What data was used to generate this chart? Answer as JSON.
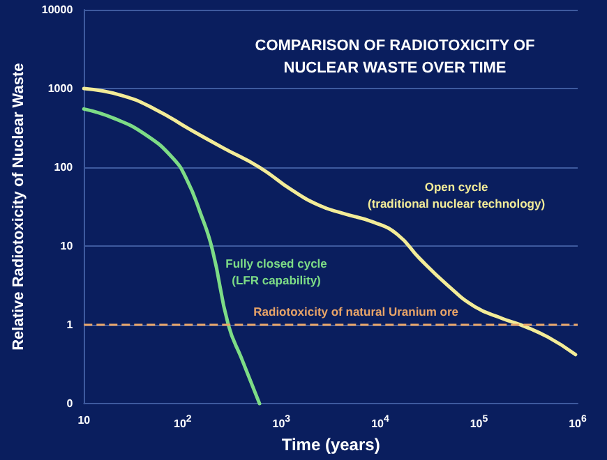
{
  "chart_data": {
    "type": "line",
    "title": "COMPARISON OF RADIOTOXICITY OF\nNUCLEAR WASTE OVER TIME",
    "xlabel": "Time (years)",
    "ylabel": "Relative Radiotoxicity of Nuclear Waste",
    "log": "xy",
    "grid": "y",
    "legend": false,
    "marker": "none",
    "line_style": "solid",
    "xlim": [
      10,
      1000000
    ],
    "ylim": [
      0.1,
      10000
    ],
    "xticks": [
      10,
      {
        "value": 100,
        "label": "10$^{2}$"
      },
      {
        "value": 1000,
        "label": "10$^{3}$"
      },
      {
        "value": 10000,
        "label": "10$^{4}$"
      },
      {
        "value": 100000,
        "label": "10$^{5}$"
      },
      {
        "value": 1000000,
        "label": "10$^{6}$"
      }
    ],
    "yticks": [
      {
        "value": 0.1,
        "label": "0"
      },
      1,
      10,
      100,
      1000,
      10000
    ],
    "series": [
      {
        "name": "Open cycle\n(traditional nuclear technology)",
        "color": "#f3ec98",
        "x": [
          10,
          24,
          52,
          120,
          260,
          600,
          1260,
          2400,
          4200,
          8700,
          15000,
          25000,
          48000,
          91000,
          174000,
          265000,
          500000,
          950000
        ],
        "values": [
          1000,
          820,
          550,
          300,
          175,
          100,
          52,
          33,
          26,
          20,
          14,
          7,
          3.2,
          1.7,
          1.2,
          1.0,
          0.7,
          0.42
        ]
      },
      {
        "name": "Fully closed cycle\n(LFR capability)",
        "color": "#7ddc86",
        "x": [
          10,
          20,
          42,
          80,
          110,
          150,
          200,
          290,
          400,
          600
        ],
        "values": [
          550,
          420,
          260,
          130,
          70,
          27,
          9,
          1,
          0.36,
          0.1
        ]
      }
    ],
    "ref_lines": [
      {
        "axis": "y",
        "value": 1,
        "label": "Radiotoxicity of natural Uranium ore",
        "color": "#e8a468",
        "line_style": "dashed"
      }
    ]
  }
}
